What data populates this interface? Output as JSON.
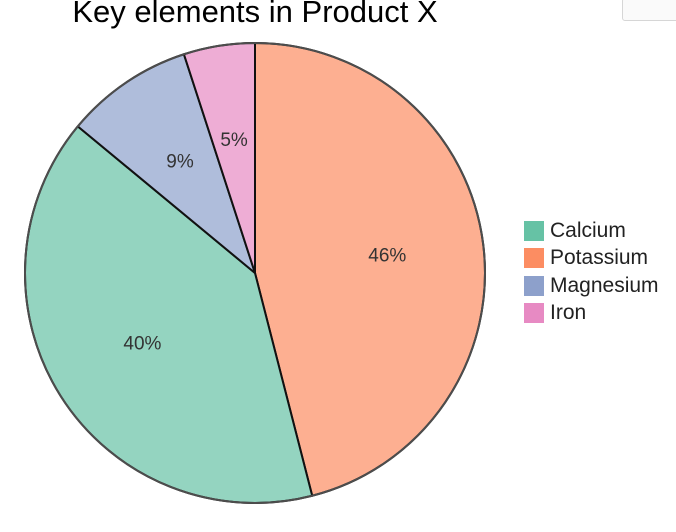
{
  "chart_data": {
    "type": "pie",
    "title": "Key elements in Product X",
    "categories": [
      "Calcium",
      "Potassium",
      "Magnesium",
      "Iron"
    ],
    "values": [
      40,
      46,
      9,
      5
    ],
    "data_labels": [
      "40%",
      "46%",
      "9%",
      "5%"
    ],
    "colors": [
      "#66c2a5",
      "#fc8d62",
      "#8da0cb",
      "#e78ac3"
    ],
    "legend_position": "right",
    "start": "top",
    "direction": "clockwise",
    "draw_order": [
      "Potassium",
      "Calcium",
      "Magnesium",
      "Iron"
    ]
  }
}
